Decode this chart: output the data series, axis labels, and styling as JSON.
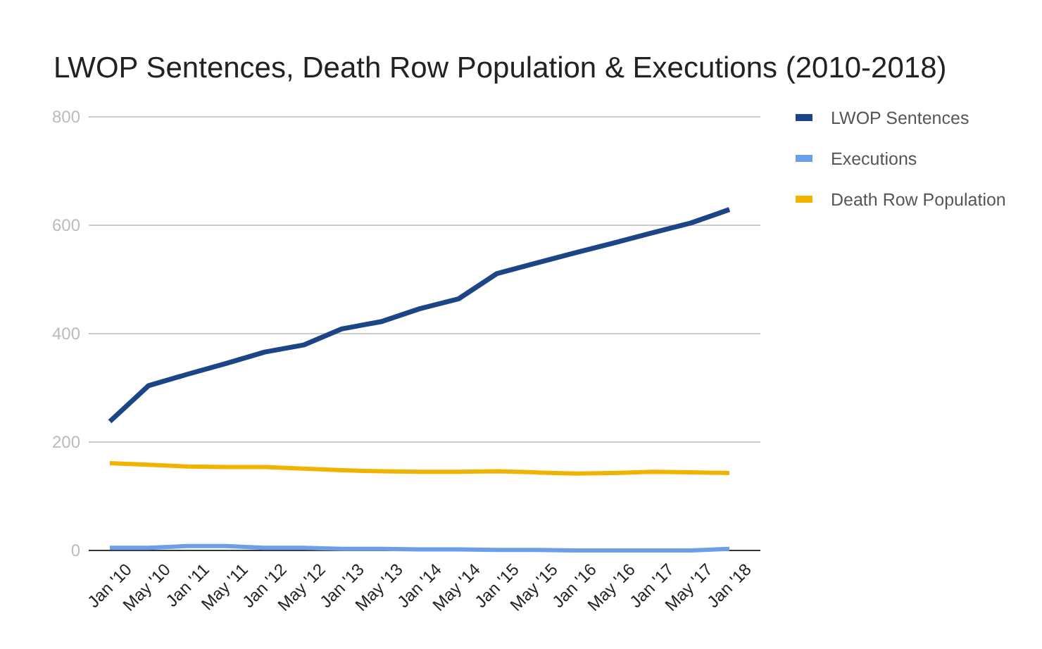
{
  "chart_data": {
    "type": "line",
    "title": "LWOP Sentences, Death Row Population & Executions (2010-2018)",
    "categories": [
      "Jan '10",
      "May '10",
      "Jan '11",
      "May '11",
      "Jan '12",
      "May '12",
      "Jan '13",
      "May '13",
      "Jan '14",
      "May '14",
      "Jan '15",
      "May '15",
      "Jan '16",
      "May '16",
      "Jan '17",
      "May '17",
      "Jan '18"
    ],
    "series": [
      {
        "name": "LWOP Sentences",
        "color": "#1c4587",
        "values": [
          238,
          304,
          325,
          345,
          366,
          379,
          409,
          422,
          446,
          464,
          511,
          530,
          549,
          567,
          586,
          604,
          629
        ]
      },
      {
        "name": "Executions",
        "color": "#6d9eeb",
        "values": [
          5,
          5,
          8,
          8,
          5,
          5,
          3,
          3,
          2,
          2,
          1,
          1,
          0,
          0,
          0,
          0,
          3
        ]
      },
      {
        "name": "Death Row Population",
        "color": "#f1b300",
        "values": [
          161,
          158,
          155,
          154,
          154,
          151,
          148,
          146,
          145,
          145,
          146,
          144,
          142,
          143,
          145,
          144,
          143
        ]
      }
    ],
    "ylim": [
      0,
      800
    ],
    "yticks": [
      0,
      200,
      400,
      600,
      800
    ],
    "grid": "y",
    "legend": "right",
    "marker": "none",
    "line_style": "solid"
  }
}
